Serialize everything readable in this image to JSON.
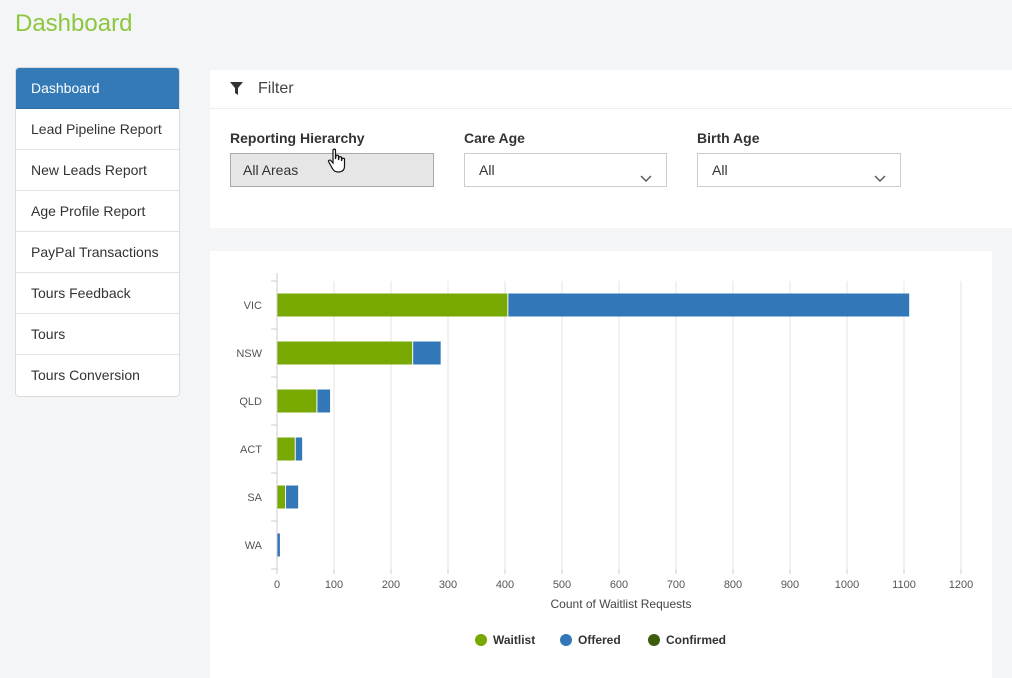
{
  "page": {
    "title": "Dashboard"
  },
  "sidebar": {
    "items": [
      {
        "label": "Dashboard",
        "active": true
      },
      {
        "label": "Lead Pipeline Report"
      },
      {
        "label": "New Leads Report"
      },
      {
        "label": "Age Profile Report"
      },
      {
        "label": "PayPal Transactions"
      },
      {
        "label": "Tours Feedback"
      },
      {
        "label": "Tours"
      },
      {
        "label": "Tours Conversion"
      }
    ]
  },
  "filter": {
    "title": "Filter",
    "icon": "funnel-icon",
    "fields": [
      {
        "label": "Reporting Hierarchy",
        "value": "All Areas"
      },
      {
        "label": "Care Age",
        "value": "All"
      },
      {
        "label": "Birth Age",
        "value": "All"
      }
    ]
  },
  "colors": {
    "brand_title": "#8dc63f",
    "active_nav": "#337ab7",
    "waitlist": "#78a802",
    "offered": "#3278b8",
    "confirmed": "#3e5c0a"
  },
  "chart_data": {
    "type": "bar",
    "orientation": "horizontal",
    "stacked": true,
    "categories": [
      "VIC",
      "NSW",
      "QLD",
      "ACT",
      "SA",
      "WA"
    ],
    "series": [
      {
        "name": "Waitlist",
        "color": "#78a802",
        "values": [
          405,
          238,
          70,
          32,
          15,
          0
        ]
      },
      {
        "name": "Offered",
        "color": "#3278b8",
        "values": [
          705,
          50,
          24,
          13,
          23,
          6
        ]
      },
      {
        "name": "Confirmed",
        "color": "#3e5c0a",
        "values": [
          0,
          0,
          0,
          0,
          0,
          0
        ]
      }
    ],
    "xlabel": "Count of Waitlist Requests",
    "ylabel": "",
    "xlim": [
      0,
      1200
    ],
    "xticks": [
      0,
      100,
      200,
      300,
      400,
      500,
      600,
      700,
      800,
      900,
      1000,
      1100,
      1200
    ],
    "grid": true,
    "legend": "bottom-center"
  }
}
